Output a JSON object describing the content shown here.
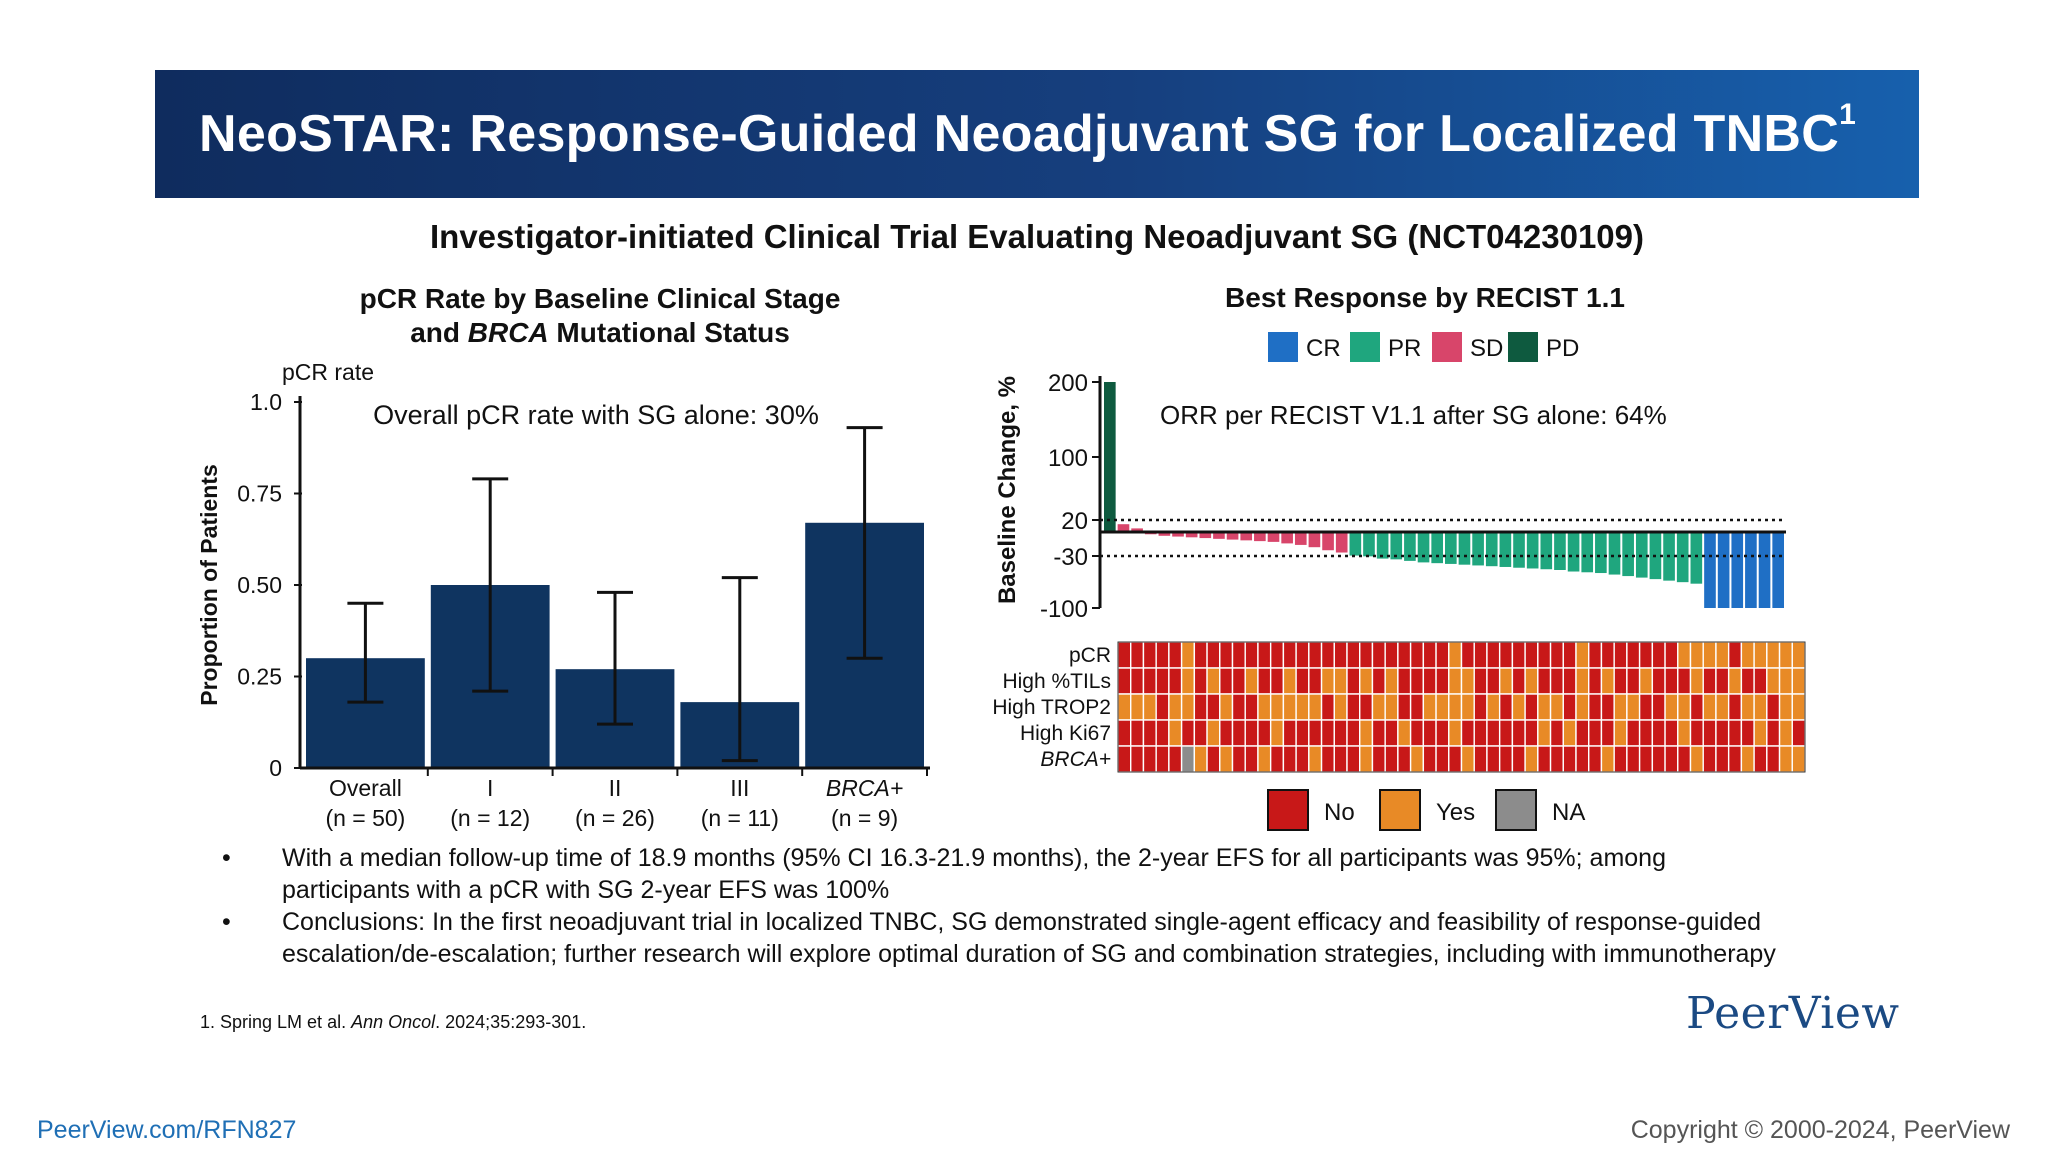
{
  "banner": {
    "title": "NeoSTAR: Response-Guided Neoadjuvant SG for Localized TNBC",
    "superscript": "1"
  },
  "subtitle": "Investigator-initiated Clinical Trial Evaluating Neoadjuvant SG (NCT04230109)",
  "left_chart": {
    "title_line1": "pCR Rate by Baseline Clinical Stage",
    "title_line2_pre": "and ",
    "title_line2_italic": "BRCA",
    "title_line2_post": " Mutational Status"
  },
  "right_chart": {
    "title": "Best Response by RECIST 1.1"
  },
  "bullets": [
    "With a median follow-up time of 18.9 months (95% CI 16.3-21.9 months), the 2-year EFS for all participants was 95%; among participants with a pCR with SG 2-year EFS was 100%",
    "Conclusions: In the first neoadjuvant trial in localized TNBC, SG demonstrated single-agent efficacy and feasibility of response-guided escalation/de-escalation; further research will explore optimal duration of SG and combination strategies, including with immunotherapy"
  ],
  "footnote": {
    "pre": "1. Spring LM et al. ",
    "journal": "Ann Oncol",
    "post": ". 2024;35:293-301."
  },
  "logo": "PeerView",
  "url": "PeerView.com/RFN827",
  "copyright": "Copyright © 2000-2024, PeerView",
  "colors": {
    "bar": "#0f3460",
    "cr": "#1f6fc5",
    "pr": "#1fa67e",
    "sd": "#d8456a",
    "pd": "#0e5a3f",
    "no": "#c81818",
    "yes": "#e88a26",
    "na": "#8c8c8c"
  },
  "chart_data": [
    {
      "type": "bar",
      "ylabel": "Proportion of Patients",
      "axis_caption": "pCR rate",
      "annotation": "Overall pCR rate with SG alone: 30%",
      "ylim": [
        0,
        1.0
      ],
      "y_ticks": [
        {
          "value": 0,
          "label": "0"
        },
        {
          "value": 0.25,
          "label": "0.25"
        },
        {
          "value": 0.5,
          "label": "0.50"
        },
        {
          "value": 0.75,
          "label": "0.75"
        },
        {
          "value": 1.0,
          "label": "1.0"
        }
      ],
      "categories": [
        {
          "label": "Overall",
          "n": "(n = 50)",
          "italic": false
        },
        {
          "label": "I",
          "n": "(n = 12)",
          "italic": false
        },
        {
          "label": "II",
          "n": "(n = 26)",
          "italic": false
        },
        {
          "label": "III",
          "n": "(n = 11)",
          "italic": false
        },
        {
          "label": "BRCA+",
          "n": "(n = 9)",
          "italic": true
        }
      ],
      "values": [
        0.3,
        0.5,
        0.27,
        0.18,
        0.67
      ],
      "ci_low": [
        0.18,
        0.21,
        0.12,
        0.02,
        0.3
      ],
      "ci_high": [
        0.45,
        0.79,
        0.48,
        0.52,
        0.93
      ]
    },
    {
      "type": "bar",
      "subtype": "waterfall",
      "ylabel": "Baseline Change, %",
      "annotation": "ORR per RECIST V1.1 after SG alone: 64%",
      "y_ticks": [
        {
          "value": 200,
          "label": "200"
        },
        {
          "value": 100,
          "label": "100"
        },
        {
          "value": 20,
          "label": "20"
        },
        {
          "value": -30,
          "label": "-30"
        },
        {
          "value": -100,
          "label": "-100"
        }
      ],
      "reference_lines": [
        20,
        -30
      ],
      "legend": [
        {
          "key": "CR",
          "label": "CR"
        },
        {
          "key": "PR",
          "label": "PR"
        },
        {
          "key": "SD",
          "label": "SD"
        },
        {
          "key": "PD",
          "label": "PD"
        }
      ],
      "bars": [
        {
          "v": 200,
          "r": "PD"
        },
        {
          "v": 13,
          "r": "SD"
        },
        {
          "v": 6,
          "r": "SD"
        },
        {
          "v": -3,
          "r": "SD"
        },
        {
          "v": -5,
          "r": "SD"
        },
        {
          "v": -6,
          "r": "SD"
        },
        {
          "v": -7,
          "r": "SD"
        },
        {
          "v": -8,
          "r": "SD"
        },
        {
          "v": -9,
          "r": "SD"
        },
        {
          "v": -10,
          "r": "SD"
        },
        {
          "v": -11,
          "r": "SD"
        },
        {
          "v": -12,
          "r": "SD"
        },
        {
          "v": -13,
          "r": "SD"
        },
        {
          "v": -15,
          "r": "SD"
        },
        {
          "v": -17,
          "r": "SD"
        },
        {
          "v": -20,
          "r": "SD"
        },
        {
          "v": -24,
          "r": "SD"
        },
        {
          "v": -27,
          "r": "SD"
        },
        {
          "v": -31,
          "r": "PR"
        },
        {
          "v": -32,
          "r": "PR"
        },
        {
          "v": -35,
          "r": "PR"
        },
        {
          "v": -36,
          "r": "PR"
        },
        {
          "v": -38,
          "r": "PR"
        },
        {
          "v": -40,
          "r": "PR"
        },
        {
          "v": -41,
          "r": "PR"
        },
        {
          "v": -42,
          "r": "PR"
        },
        {
          "v": -43,
          "r": "PR"
        },
        {
          "v": -44,
          "r": "PR"
        },
        {
          "v": -45,
          "r": "PR"
        },
        {
          "v": -46,
          "r": "PR"
        },
        {
          "v": -47,
          "r": "PR"
        },
        {
          "v": -48,
          "r": "PR"
        },
        {
          "v": -49,
          "r": "PR"
        },
        {
          "v": -50,
          "r": "PR"
        },
        {
          "v": -52,
          "r": "PR"
        },
        {
          "v": -53,
          "r": "PR"
        },
        {
          "v": -54,
          "r": "PR"
        },
        {
          "v": -56,
          "r": "PR"
        },
        {
          "v": -58,
          "r": "PR"
        },
        {
          "v": -60,
          "r": "PR"
        },
        {
          "v": -62,
          "r": "PR"
        },
        {
          "v": -64,
          "r": "PR"
        },
        {
          "v": -66,
          "r": "PR"
        },
        {
          "v": -68,
          "r": "PR"
        },
        {
          "v": -100,
          "r": "CR"
        },
        {
          "v": -100,
          "r": "CR"
        },
        {
          "v": -100,
          "r": "CR"
        },
        {
          "v": -100,
          "r": "CR"
        },
        {
          "v": -100,
          "r": "CR"
        },
        {
          "v": -100,
          "r": "CR"
        }
      ]
    },
    {
      "type": "heatmap",
      "rows": [
        {
          "label": "pCR",
          "italic": false,
          "cells": "NNNNNYNNNNNNNNNNNNNNNNNNNNYNNNNNNNNNYNNNNNNNYYYYNYYYYY"
        },
        {
          "label": "High %TILs",
          "italic": false,
          "cells": "NNNNNYNYNNYNNYNNYYNYNYNNNNYYNNYNYNNNYNYNNYNNNYNNYNNYYY"
        },
        {
          "label": "High TROP2",
          "italic": false,
          "cells": "YYYNYYNNYNNYYYYYNYNNYYNNYYYYNYNYNYYNYNNYYNNYYNYYNYYNYY"
        },
        {
          "label": "High Ki67",
          "italic": false,
          "cells": "NNNNYNNYNNNNYNNNNNNYNNYNNNYNNNNNNYNYNNNYNNNNYNNNNNYNYN"
        },
        {
          "label": "BRCA+",
          "italic": true,
          "cells": "NNNNNAYNYNNYNNNYNNNYNNNYNNNYNNNNYNNNNNYNNNNNNYNNNYNNYY"
        }
      ],
      "legend": [
        {
          "key": "N",
          "label": "No"
        },
        {
          "key": "Y",
          "label": "Yes"
        },
        {
          "key": "A",
          "label": "NA"
        }
      ]
    }
  ]
}
